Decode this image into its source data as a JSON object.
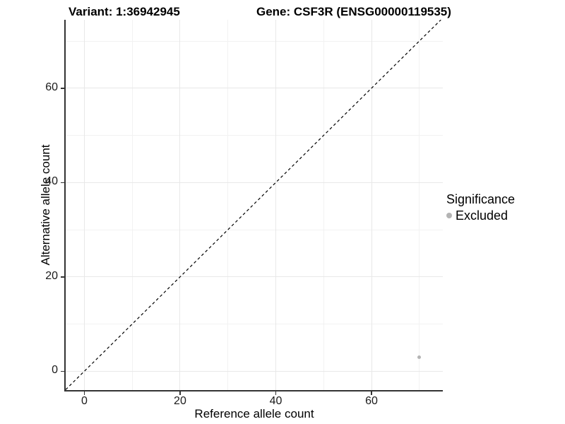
{
  "titles": {
    "variant": "Variant: 1:36942945",
    "gene": "Gene: CSF3R (ENSG00000119535)"
  },
  "legend": {
    "title": "Significance",
    "items": [
      {
        "label": "Excluded",
        "color": "#b4b4b4"
      }
    ]
  },
  "chart_data": {
    "type": "scatter",
    "title": "Variant: 1:36942945 — Gene: CSF3R (ENSG00000119535)",
    "xlabel": "Reference allele count",
    "ylabel": "Alternative allele count",
    "x_ticks": [
      0,
      20,
      40,
      60
    ],
    "y_ticks": [
      0,
      20,
      40,
      60
    ],
    "x_minor_gridlines": [
      10,
      30,
      50,
      70
    ],
    "y_minor_gridlines": [
      10,
      30,
      50,
      70
    ],
    "xlim": [
      -3.9,
      74.9
    ],
    "ylim": [
      -4.0,
      74.5
    ],
    "grid": true,
    "legend_position": "right",
    "identity_line": {
      "style": "dashed",
      "slope": 1,
      "intercept": 0,
      "color": "#000000"
    },
    "series": [
      {
        "name": "Excluded",
        "color": "#b4b4b4",
        "point_size": 5,
        "points": [
          [
            70,
            3
          ]
        ]
      }
    ]
  },
  "colors": {
    "background": "#ffffff",
    "axis_line": "#333333",
    "tick_label": "#1a1a1a",
    "major_grid": "#e8e8e8",
    "minor_grid": "#f2f2f2",
    "point": "#b4b4b4"
  }
}
